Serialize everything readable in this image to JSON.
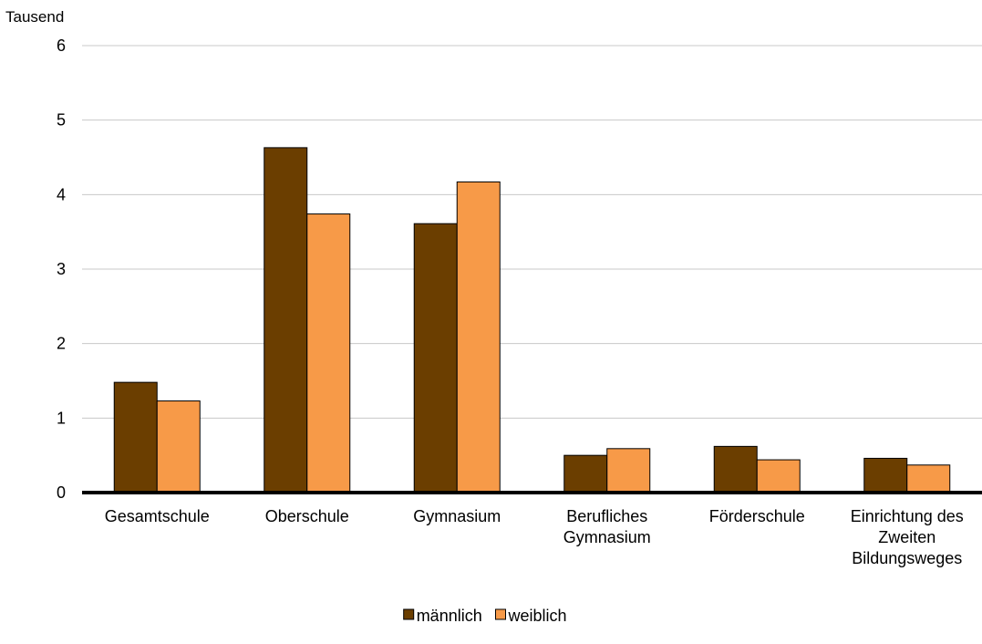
{
  "chart_data": {
    "type": "bar",
    "unit_label": "Tausend",
    "categories": [
      [
        "Gesamtschule"
      ],
      [
        "Oberschule"
      ],
      [
        "Gymnasium"
      ],
      [
        "Berufliches",
        "Gymnasium"
      ],
      [
        "Förderschule"
      ],
      [
        "Einrichtung des",
        "Zweiten",
        "Bildungsweges"
      ]
    ],
    "series": [
      {
        "name": "männlich",
        "color": "#6b3e00",
        "values": [
          1.48,
          4.63,
          3.61,
          0.5,
          0.62,
          0.46
        ]
      },
      {
        "name": "weiblich",
        "color": "#f79a48",
        "values": [
          1.23,
          3.74,
          4.17,
          0.59,
          0.44,
          0.37
        ]
      }
    ],
    "yticks": [
      "0",
      "1",
      "2",
      "3",
      "4",
      "5",
      "6"
    ],
    "ylim": [
      0,
      6
    ],
    "grid": true,
    "legend_position": "bottom-center"
  }
}
